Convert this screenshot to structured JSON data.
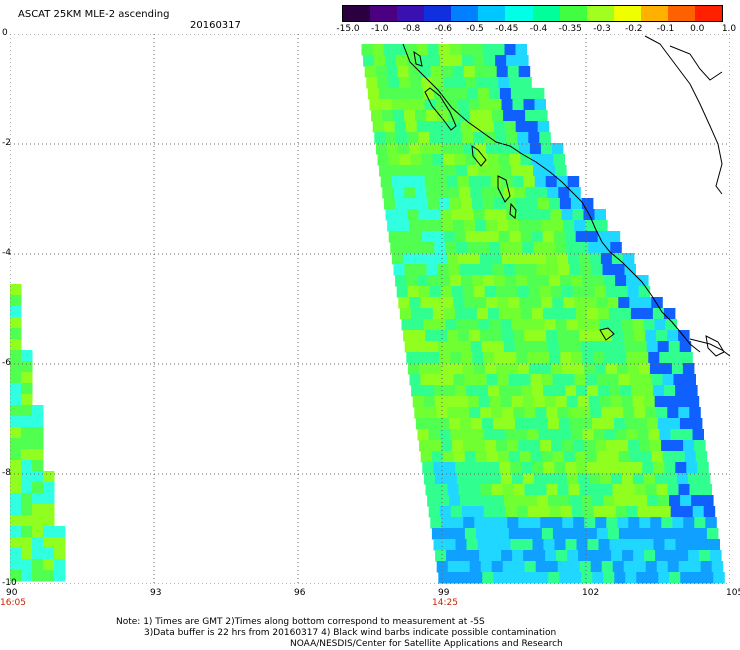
{
  "header": {
    "title": "ASCAT 25KM MLE-2 ascending",
    "date": "20160317"
  },
  "colorbar": {
    "labels": [
      "-15.0",
      "-1.0",
      "-0.8",
      "-0.6",
      "-0.5",
      "-0.45",
      "-0.4",
      "-0.35",
      "-0.3",
      "-0.2",
      "-0.1",
      "0.0",
      "1.0"
    ],
    "colors": [
      "#2a0040",
      "#4a0080",
      "#3a10b0",
      "#1030e0",
      "#0080ff",
      "#00c8ff",
      "#00ffe6",
      "#00ff9a",
      "#40ff40",
      "#a0ff20",
      "#f0ff00",
      "#ffb000",
      "#ff6000",
      "#ff2000"
    ]
  },
  "axes": {
    "x_ticks": [
      "90",
      "93",
      "96",
      "99",
      "102",
      "105"
    ],
    "y_ticks": [
      "0",
      "-2",
      "-4",
      "-6",
      "-8",
      "-10"
    ],
    "time_labels": [
      {
        "text": "16:05",
        "lon": "90"
      },
      {
        "text": "14:25",
        "lon": "99"
      }
    ]
  },
  "footer": {
    "note_line1": "Note: 1) Times are GMT 2)Times along bottom correspond to measurement at -5S",
    "note_line2": "3)Data buffer is 22 hrs from 20160317 4) Black wind barbs indicate possible contamination",
    "credit": "NOAA/NESDIS/Center for Satellite Applications and Research"
  }
}
